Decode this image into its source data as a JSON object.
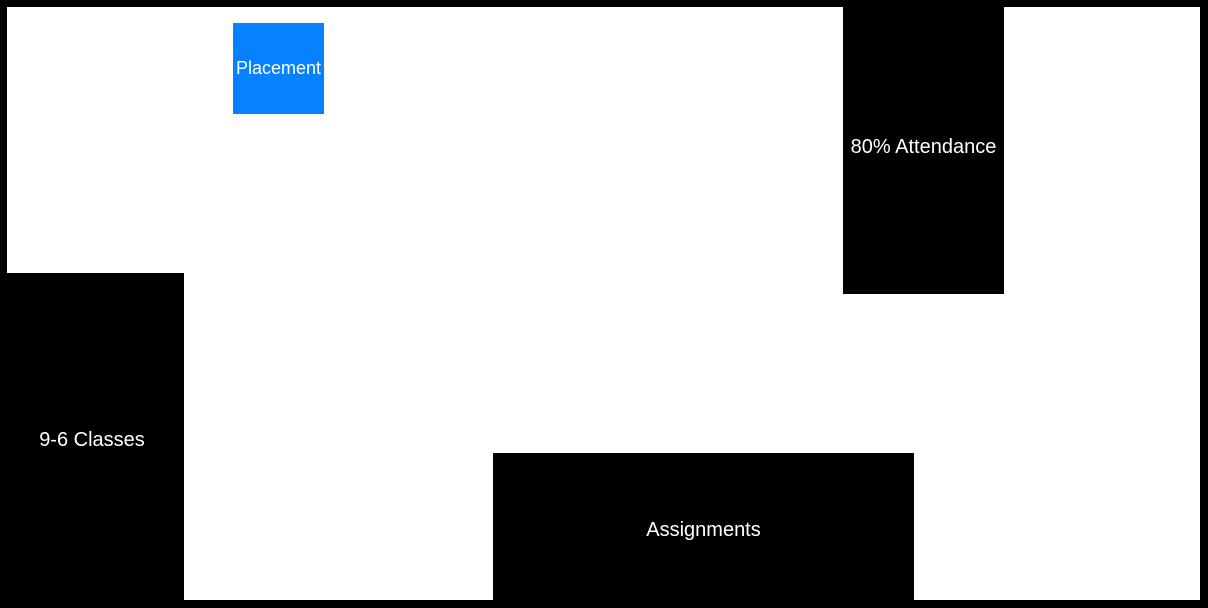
{
  "blocks": {
    "placement": {
      "label": "Placement",
      "color": "#0682ff"
    },
    "attendance": {
      "label": "80% Attendance",
      "color": "#000000"
    },
    "classes": {
      "label": "9-6 Classes",
      "color": "#000000"
    },
    "assignments": {
      "label": "Assignments",
      "color": "#000000"
    }
  }
}
